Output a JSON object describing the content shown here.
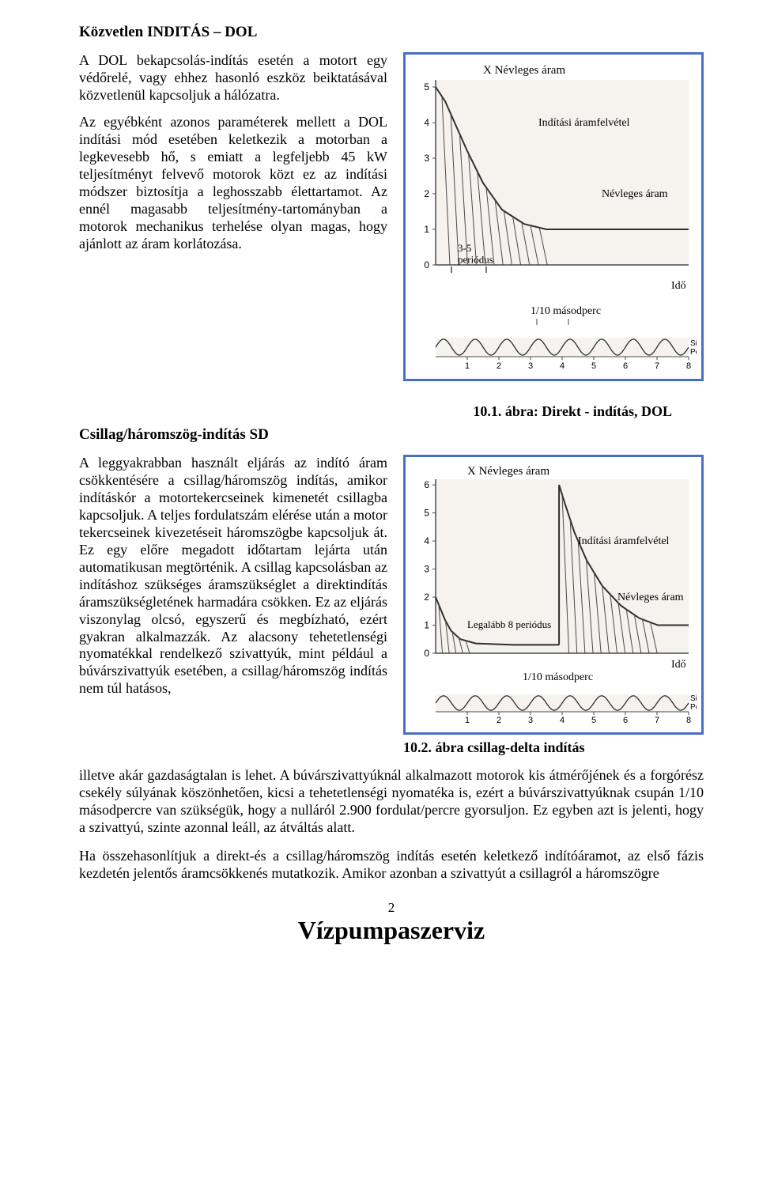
{
  "section1": {
    "title": "Közvetlen INDITÁS – DOL",
    "para1": "A DOL bekapcsolás-indítás esetén a motort egy védőrelé, vagy ehhez hasonló eszköz beiktatásával közvetlenül kapcsoljuk a hálózatra.",
    "para2": "Az egyébként azonos paraméterek mellett a DOL indítási mód esetében keletkezik a motorban a legkevesebb hő, s emiatt a legfeljebb 45 kW teljesítményt felvevő motorok közt ez az indítási módszer biztosítja a leghosszabb élettartamot. Az ennél magasabb teljesítmény-tartományban a motorok mechanikus terhelése olyan magas, hogy ajánlott az áram korlátozása."
  },
  "chart1": {
    "title_top": "X Névleges áram",
    "label_curve": "Indítási áramfelvétel",
    "label_steady": "Névleges áram",
    "label_periods": "3-5\nperiódus",
    "label_time": "Idő",
    "label_tenth": "1/10 másodperc",
    "label_sine": "Sinus-\nPerioden",
    "plot_bg": "#f6f3ee",
    "axis_color": "#4a4a4a",
    "curve_color": "#303030",
    "hatch_color": "#4a4a4a",
    "y_ticks": [
      0,
      1,
      2,
      3,
      4,
      5
    ],
    "x_sine_ticks": [
      1,
      2,
      3,
      4,
      5,
      6,
      7,
      8
    ],
    "curve_points": [
      [
        0,
        5.0
      ],
      [
        0.3,
        4.6
      ],
      [
        0.6,
        4.0
      ],
      [
        1.0,
        3.2
      ],
      [
        1.5,
        2.3
      ],
      [
        2.1,
        1.55
      ],
      [
        2.8,
        1.15
      ],
      [
        3.5,
        1.0
      ],
      [
        5.0,
        1.0
      ],
      [
        8.0,
        1.0
      ]
    ],
    "steady_y": 1.0,
    "x_max": 8,
    "y_max": 5.2
  },
  "chart2": {
    "title_top": "X Névleges áram",
    "label_curve": "Indítási áramfelvétel",
    "label_steady": "Névleges  áram",
    "label_periods": "Legalább 8 periódus",
    "label_time": "Idő",
    "label_tenth": "1/10 másodperc",
    "label_sine": "Sinus-\nPerioden",
    "plot_bg": "#f6f3ee",
    "axis_color": "#4a4a4a",
    "curve_color": "#303030",
    "hatch_color": "#4a4a4a",
    "y_ticks": [
      0,
      1,
      2,
      3,
      4,
      5,
      6
    ],
    "x_sine_ticks": [
      1,
      2,
      3,
      4,
      5,
      6,
      7,
      8
    ],
    "initial_spike": [
      [
        0,
        2.0
      ],
      [
        0.15,
        1.6
      ],
      [
        0.3,
        1.2
      ],
      [
        0.5,
        0.8
      ],
      [
        0.8,
        0.5
      ],
      [
        1.3,
        0.35
      ],
      [
        2.5,
        0.3
      ],
      [
        4.0,
        0.3
      ]
    ],
    "second_spike": [
      [
        4.0,
        6.0
      ],
      [
        4.2,
        5.3
      ],
      [
        4.5,
        4.3
      ],
      [
        4.9,
        3.3
      ],
      [
        5.4,
        2.4
      ],
      [
        6.0,
        1.7
      ],
      [
        6.6,
        1.25
      ],
      [
        7.2,
        1.0
      ],
      [
        8.2,
        1.0
      ]
    ],
    "steady_y": 1.0,
    "x_max": 8.2,
    "y_max": 6.2
  },
  "caption1": "10.1. ábra: Direkt - indítás, DOL",
  "section2": {
    "title": "Csillag/háromszög-indítás SD",
    "para": "A leggyakrabban használt eljárás az indító áram csökkentésére a csillag/háromszög indítás, amikor  indításkór a motortekercseinek kimenetét csillagba kapcsoljuk. A teljes fordulatszám elérése után a motor tekercseinek kivezetéseit háromszögbe kapcsoljuk át. Ez egy előre megadott időtartam lejárta után automatikusan megtörténik. A csillag kapcsolásban az indításhoz szükséges áramszükséglet a direktindítás áramszükségletének harmadára csökken. Ez az eljárás viszonylag olcsó, egyszerű és megbízható, ezért gyakran alkalmazzák.  Az alacsony tehetetlenségi nyomatékkal rendelkező szivattyúk, mint például a búvárszivattyúk esetében, a csillag/háromszög indítás nem túl hatásos,"
  },
  "caption2": "10.2. ábra csillag-delta indítás",
  "full_para1": "illetve akár gazdaságtalan is lehet. A búvárszivattyúknál alkalmazott motorok kis átmérőjének és a forgórész csekély súlyának köszönhetően, kicsi a tehetetlenségi nyomatéka is, ezért a búvárszivattyúknak csupán 1/10 másodpercre van szükségük, hogy a nulláról 2.900 fordulat/percre gyorsuljon. Ez egyben azt is jelenti, hogy a szivattyú, szinte azonnal leáll, az átváltás alatt.",
  "full_para2": "Ha összehasonlítjuk a direkt-és a csillag/háromszög indítás esetén keletkező indítóáramot, az első fázis kezdetén jelentős áramcsökkenés mutatkozik. Amikor azonban a szivattyút a csillagról a háromszögre",
  "footer": {
    "page": "2",
    "brand": "Vízpumpaszerviz"
  }
}
